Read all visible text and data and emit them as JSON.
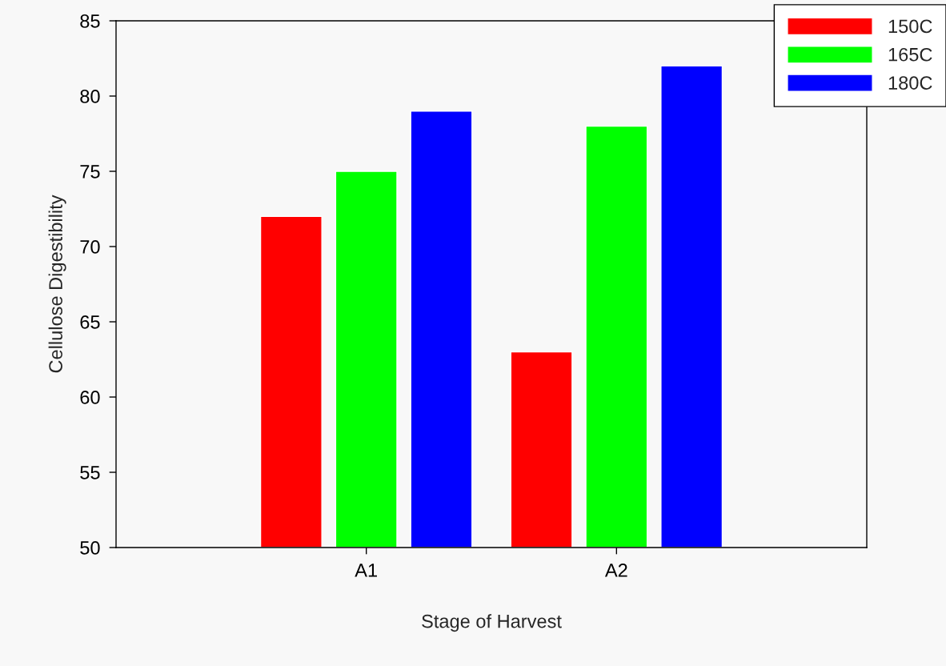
{
  "chart_data": {
    "type": "bar",
    "xlabel": "Stage of Harvest",
    "ylabel": "Cellulose Digestibility",
    "categories": [
      "A1",
      "A2"
    ],
    "series": [
      {
        "name": "150C",
        "color": "#ff0000",
        "values": [
          72,
          63
        ]
      },
      {
        "name": "165C",
        "color": "#00ff00",
        "values": [
          75,
          78
        ]
      },
      {
        "name": "180C",
        "color": "#0000ff",
        "values": [
          79,
          82
        ]
      }
    ],
    "ylim": [
      50,
      85
    ],
    "yticks": [
      50,
      55,
      60,
      65,
      70,
      75,
      80,
      85
    ],
    "legend": "top right"
  }
}
